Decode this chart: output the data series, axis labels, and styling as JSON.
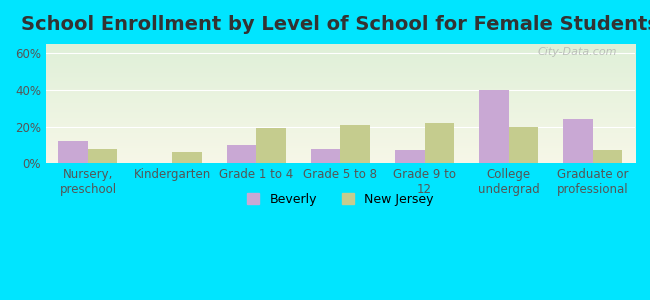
{
  "title": "School Enrollment by Level of School for Female Students",
  "categories": [
    "Nursery,\npreschool",
    "Kindergarten",
    "Grade 1 to 4",
    "Grade 5 to 8",
    "Grade 9 to\n12",
    "College\nundergrad",
    "Graduate or\nprofessional"
  ],
  "beverly": [
    12,
    0,
    10,
    8,
    7,
    40,
    24
  ],
  "new_jersey": [
    8,
    6,
    19,
    21,
    22,
    20,
    7
  ],
  "beverly_color": "#c9a8d4",
  "nj_color": "#c5cc8e",
  "background_outer": "#00e5ff",
  "bg_top_color": "#dff0d8",
  "bg_bot_color": "#f7f7e8",
  "yticks": [
    0,
    20,
    40,
    60
  ],
  "ylim": [
    0,
    65
  ],
  "legend_beverly": "Beverly",
  "legend_nj": "New Jersey",
  "watermark": "City-Data.com",
  "title_fontsize": 14,
  "tick_fontsize": 8.5,
  "legend_fontsize": 9,
  "bar_width": 0.35
}
